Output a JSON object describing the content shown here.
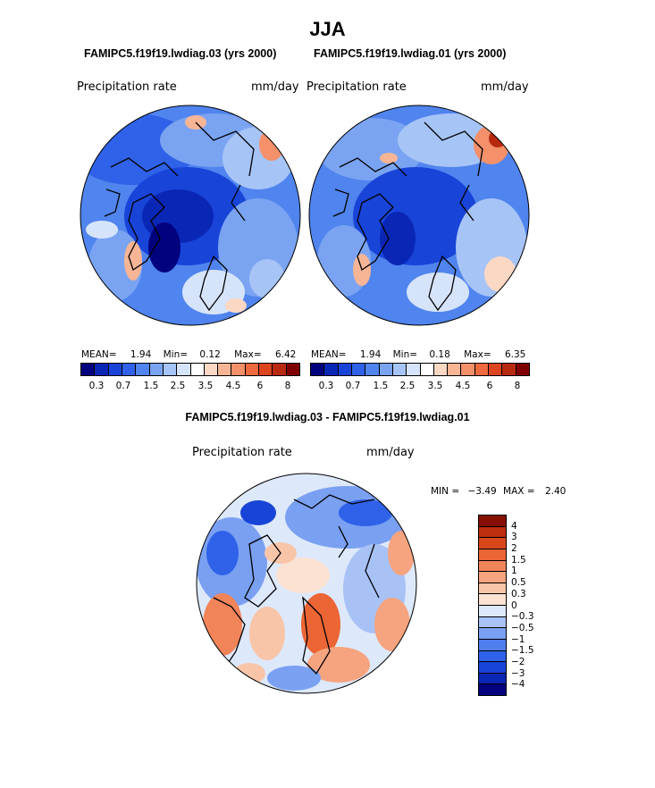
{
  "season": "JJA",
  "colors": {
    "abs_scale": [
      "#02027f",
      "#0a26b5",
      "#1844d8",
      "#2f62e8",
      "#5084ee",
      "#7aa4f2",
      "#a6c4f6",
      "#d6e4fb",
      "#ffffff",
      "#fbd8c4",
      "#f7b596",
      "#f4906a",
      "#ef6a3e",
      "#dc4520",
      "#b82a10",
      "#7f0000"
    ],
    "diff_scale": [
      "#02027f",
      "#0a26b5",
      "#1844d8",
      "#2f62e8",
      "#4f7fee",
      "#7aa0f2",
      "#a8c2f6",
      "#dde8fb",
      "#fbe2d2",
      "#f8c5a8",
      "#f5a47f",
      "#f2845a",
      "#ec6535",
      "#d9481b",
      "#bd2e0e",
      "#861000"
    ]
  },
  "panel_left": {
    "title": "FAMIPC5.f19f19.lwdiag.03 (yrs 2000)",
    "variable": "Precipitation rate",
    "units": "mm/day",
    "mean_label": "MEAN=",
    "mean": "1.94",
    "min_label": "Min=",
    "min": "0.12",
    "max_label": "Max=",
    "max": "6.42",
    "ticks": [
      "0.3",
      "0.7",
      "1.5",
      "2.5",
      "3.5",
      "4.5",
      "6",
      "8"
    ]
  },
  "panel_right": {
    "title": "FAMIPC5.f19f19.lwdiag.01 (yrs 2000)",
    "variable": "Precipitation rate",
    "units": "mm/day",
    "mean_label": "MEAN=",
    "mean": "1.94",
    "min_label": "Min=",
    "min": "0.18",
    "max_label": "Max=",
    "max": "6.35",
    "ticks": [
      "0.3",
      "0.7",
      "1.5",
      "2.5",
      "3.5",
      "4.5",
      "6",
      "8"
    ]
  },
  "panel_diff": {
    "title": "FAMIPC5.f19f19.lwdiag.03 - FAMIPC5.f19f19.lwdiag.01",
    "variable": "Precipitation rate",
    "units": "mm/day",
    "min_label": "MIN =",
    "min": "−3.49",
    "max_label": "MAX =",
    "max": "2.40",
    "levels": [
      "4",
      "3",
      "2",
      "1.5",
      "1",
      "0.5",
      "0.3",
      "0",
      "−0.3",
      "−0.5",
      "−1",
      "−1.5",
      "−2",
      "−3",
      "−4"
    ]
  }
}
